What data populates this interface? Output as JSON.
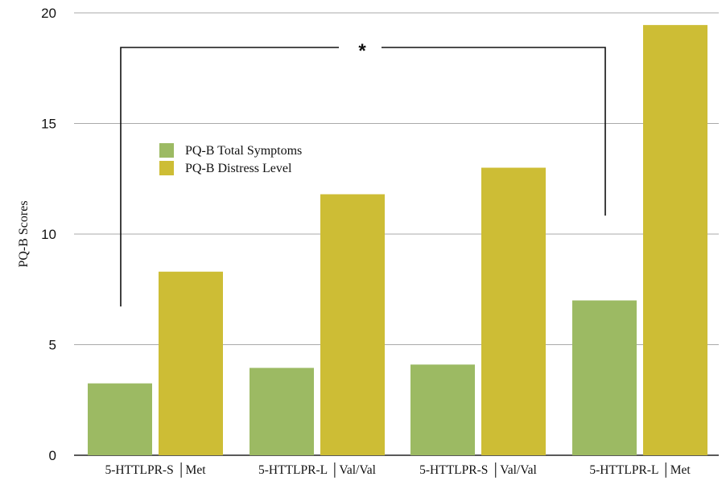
{
  "chart_data": {
    "type": "bar",
    "categories": [
      "5-HTTLPR-S │Met",
      "5-HTTLPR-L │Val/Val",
      "5-HTTLPR-S │Val/Val",
      "5-HTTLPR-L │Met"
    ],
    "series": [
      {
        "name": "PQ-B Total Symptoms",
        "color": "#9cba63",
        "values": [
          3.25,
          3.95,
          4.1,
          7.0
        ]
      },
      {
        "name": "PQ-B Distress Level",
        "color": "#cdbd35",
        "values": [
          8.3,
          11.8,
          13.0,
          19.45
        ]
      }
    ],
    "title": "",
    "xlabel": "",
    "ylabel": "PQ-B Scores",
    "ylim": [
      0,
      20
    ],
    "yticks": [
      "0",
      "5",
      "10",
      "15",
      "20"
    ],
    "grid": true,
    "legend_position": "upper-left, inside",
    "significance": {
      "label": "*",
      "from_category": "5-HTTLPR-S │Met",
      "to_category": "5-HTTLPR-L │Met"
    }
  }
}
